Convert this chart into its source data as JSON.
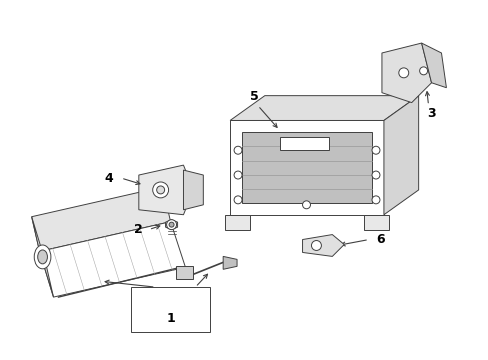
{
  "bg_color": "#ffffff",
  "line_color": "#404040",
  "label_color": "#000000",
  "parts": {
    "inflator": {
      "label": "1"
    },
    "bolt": {
      "label": "2"
    },
    "bracket_upper": {
      "label": "3"
    },
    "bracket_side": {
      "label": "4"
    },
    "housing": {
      "label": "5"
    },
    "clip": {
      "label": "6"
    }
  },
  "label_fontsize": 9,
  "lw": 0.7
}
